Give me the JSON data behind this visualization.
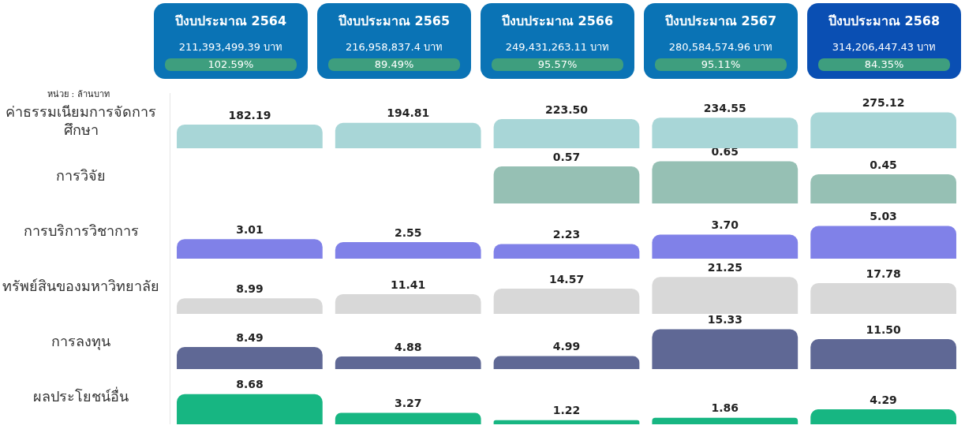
{
  "chart_data": [
    {
      "type": "other",
      "categories": [
        "ปีงบประมาณ 2564",
        "ปีงบประมาณ 2565",
        "ปีงบประมาณ 2566",
        "ปีงบประมาณ 2567",
        "ปีงบประมาณ 2568"
      ],
      "colors": [
        "#0a73b5",
        "#0a73b5",
        "#0a73b5",
        "#0a73b5",
        "#0a4fb3"
      ],
      "annotations": [
        "211,393,499.39 บาท",
        "102.59%",
        "216,958,837.4 บาท",
        "89.49%",
        "249,431,263.11 บาท",
        "95.57%",
        "280,584,574.96 บาท",
        "95.11%",
        "314,206,447.43 บาท",
        "84.35%"
      ]
    },
    {
      "type": "bar",
      "title": "ค่าธรรมเนียมการจัดการศึกษา",
      "annotations": [
        "หน่วย : ล้านบาท"
      ],
      "categories": [
        null,
        null,
        null,
        null,
        null
      ],
      "values": [
        182.19,
        194.81,
        223.5,
        234.55,
        275.12
      ],
      "value_labels": [
        "182.19",
        "194.81",
        "223.50",
        "234.55",
        "275.12"
      ],
      "color": "#a8d6d7",
      "tick_labels": false
    },
    {
      "type": "bar",
      "title": "การวิจัย",
      "categories": [
        null,
        null,
        null,
        null,
        null
      ],
      "values": [
        null,
        null,
        0.57,
        0.65,
        0.45
      ],
      "value_labels": [
        null,
        null,
        "0.57",
        "0.65",
        "0.45"
      ],
      "color": "#96c0b4",
      "tick_labels": false
    },
    {
      "type": "bar",
      "title": "การบริการวิชาการ",
      "categories": [
        null,
        null,
        null,
        null,
        null
      ],
      "values": [
        3.01,
        2.55,
        2.23,
        3.7,
        5.03
      ],
      "value_labels": [
        "3.01",
        "2.55",
        "2.23",
        "3.70",
        "5.03"
      ],
      "color": "#8081e8",
      "tick_labels": false
    },
    {
      "type": "bar",
      "title": "ทรัพย์สินของมหาวิทยาลัย",
      "categories": [
        null,
        null,
        null,
        null,
        null
      ],
      "values": [
        8.99,
        11.41,
        14.57,
        21.25,
        17.78
      ],
      "value_labels": [
        "8.99",
        "11.41",
        "14.57",
        "21.25",
        "17.78"
      ],
      "color": "#d8d8d8",
      "tick_labels": false
    },
    {
      "type": "bar",
      "title": "การลงทุน",
      "categories": [
        null,
        null,
        null,
        null,
        null
      ],
      "values": [
        8.49,
        4.88,
        4.99,
        15.33,
        11.5
      ],
      "value_labels": [
        "8.49",
        "4.88",
        "4.99",
        "15.33",
        "11.50"
      ],
      "color": "#5f6895",
      "tick_labels": false
    },
    {
      "type": "bar",
      "title": "ผลประโยชน์อื่น",
      "categories": [
        null,
        null,
        null,
        null,
        null
      ],
      "values": [
        8.68,
        3.27,
        1.22,
        1.86,
        4.29
      ],
      "value_labels": [
        "8.68",
        "3.27",
        "1.22",
        "1.86",
        "4.29"
      ],
      "color": "#17b682",
      "tick_labels": false
    }
  ]
}
